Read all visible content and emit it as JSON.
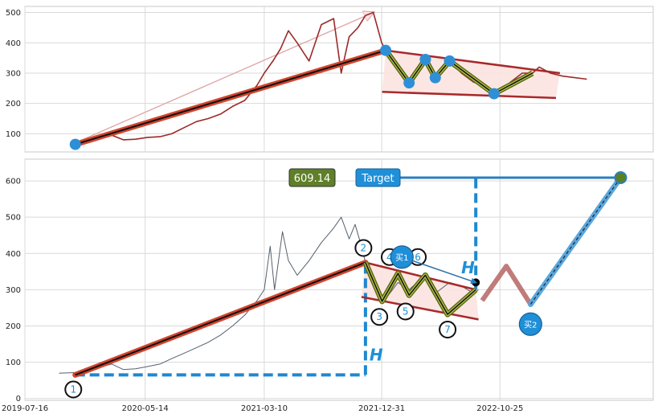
{
  "chart_data": [
    {
      "type": "line",
      "panel": "overview",
      "ylim": [
        40,
        520
      ],
      "y_ticks": [
        "100",
        "200",
        "300",
        "400",
        "500"
      ],
      "x_range": [
        "2019-07-16",
        "2023-11-15"
      ],
      "grid": true,
      "price_series": [
        [
          "2019-11-20",
          65
        ],
        [
          "2019-12-20",
          75
        ],
        [
          "2020-01-20",
          88
        ],
        [
          "2020-02-20",
          95
        ],
        [
          "2020-03-20",
          80
        ],
        [
          "2020-04-20",
          82
        ],
        [
          "2020-05-20",
          88
        ],
        [
          "2020-06-20",
          90
        ],
        [
          "2020-07-20",
          100
        ],
        [
          "2020-08-20",
          120
        ],
        [
          "2020-09-20",
          140
        ],
        [
          "2020-10-20",
          150
        ],
        [
          "2020-11-20",
          165
        ],
        [
          "2020-12-20",
          190
        ],
        [
          "2021-01-20",
          210
        ],
        [
          "2021-02-20",
          260
        ],
        [
          "2021-03-10",
          300
        ],
        [
          "2021-04-01",
          340
        ],
        [
          "2021-04-20",
          380
        ],
        [
          "2021-05-10",
          440
        ],
        [
          "2021-06-01",
          400
        ],
        [
          "2021-07-01",
          340
        ],
        [
          "2021-08-01",
          460
        ],
        [
          "2021-09-01",
          480
        ],
        [
          "2021-09-20",
          300
        ],
        [
          "2021-10-10",
          420
        ],
        [
          "2021-11-01",
          450
        ],
        [
          "2021-11-20",
          490
        ],
        [
          "2021-12-10",
          500
        ],
        [
          "2021-12-31",
          400
        ],
        [
          "2022-01-10",
          375
        ],
        [
          "2022-02-10",
          330
        ],
        [
          "2022-03-10",
          270
        ],
        [
          "2022-04-01",
          300
        ],
        [
          "2022-04-20",
          345
        ],
        [
          "2022-05-15",
          285
        ],
        [
          "2022-06-10",
          320
        ],
        [
          "2022-06-20",
          340
        ],
        [
          "2022-07-20",
          300
        ],
        [
          "2022-08-20",
          270
        ],
        [
          "2022-09-20",
          260
        ],
        [
          "2022-10-10",
          232
        ],
        [
          "2022-10-25",
          240
        ],
        [
          "2022-11-20",
          270
        ],
        [
          "2022-12-20",
          300
        ],
        [
          "2023-01-15",
          300
        ],
        [
          "2023-02-01",
          320
        ],
        [
          "2023-03-01",
          300
        ],
        [
          "2023-04-01",
          290
        ],
        [
          "2023-05-01",
          285
        ],
        [
          "2023-06-01",
          280
        ]
      ],
      "trend_line": [
        [
          "2019-11-20",
          65
        ],
        [
          "2022-01-10",
          375
        ]
      ],
      "upper_arrow": [
        [
          "2019-11-20",
          70
        ],
        [
          "2021-12-10",
          500
        ]
      ],
      "channel_upper": [
        [
          "2022-01-10",
          375
        ],
        [
          "2023-03-25",
          300
        ]
      ],
      "channel_lower": [
        [
          "2022-01-01",
          238
        ],
        [
          "2023-03-15",
          218
        ]
      ],
      "zigzag": [
        [
          "2022-01-10",
          375
        ],
        [
          "2022-03-10",
          268
        ],
        [
          "2022-04-20",
          345
        ],
        [
          "2022-05-15",
          285
        ],
        [
          "2022-06-20",
          340
        ],
        [
          "2022-10-10",
          232
        ],
        [
          "2023-01-15",
          300
        ]
      ],
      "pivot_points": [
        [
          "2019-11-20",
          65
        ],
        [
          "2022-01-10",
          375
        ],
        [
          "2022-03-10",
          268
        ],
        [
          "2022-04-20",
          345
        ],
        [
          "2022-05-15",
          285
        ],
        [
          "2022-06-20",
          340
        ],
        [
          "2022-10-10",
          232
        ]
      ]
    },
    {
      "type": "line",
      "panel": "pattern",
      "ylim": [
        -5,
        660
      ],
      "y_ticks": [
        "0",
        "100",
        "200",
        "300",
        "400",
        "500",
        "600"
      ],
      "x_ticks": [
        "2019-07-16",
        "2020-05-14",
        "2021-03-10",
        "2021-12-31",
        "2022-10-25"
      ],
      "x_range": [
        "2019-07-16",
        "2023-11-15"
      ],
      "grid": true,
      "price_series": [
        [
          "2019-10-10",
          70
        ],
        [
          "2019-12-01",
          72
        ],
        [
          "2020-01-15",
          85
        ],
        [
          "2020-02-20",
          95
        ],
        [
          "2020-03-20",
          80
        ],
        [
          "2020-04-20",
          82
        ],
        [
          "2020-05-20",
          88
        ],
        [
          "2020-06-20",
          95
        ],
        [
          "2020-07-20",
          110
        ],
        [
          "2020-08-20",
          125
        ],
        [
          "2020-09-20",
          140
        ],
        [
          "2020-10-20",
          155
        ],
        [
          "2020-11-20",
          175
        ],
        [
          "2020-12-20",
          200
        ],
        [
          "2021-01-20",
          230
        ],
        [
          "2021-02-20",
          270
        ],
        [
          "2021-03-10",
          300
        ],
        [
          "2021-03-25",
          420
        ],
        [
          "2021-04-05",
          300
        ],
        [
          "2021-04-25",
          460
        ],
        [
          "2021-05-10",
          380
        ],
        [
          "2021-06-01",
          340
        ],
        [
          "2021-07-01",
          380
        ],
        [
          "2021-08-01",
          430
        ],
        [
          "2021-09-01",
          470
        ],
        [
          "2021-09-20",
          500
        ],
        [
          "2021-10-10",
          440
        ],
        [
          "2021-10-25",
          480
        ],
        [
          "2021-11-10",
          420
        ],
        [
          "2021-11-20",
          375
        ],
        [
          "2021-12-01",
          330
        ],
        [
          "2021-12-20",
          300
        ],
        [
          "2022-01-10",
          275
        ],
        [
          "2022-02-10",
          320
        ],
        [
          "2022-03-10",
          300
        ],
        [
          "2022-04-20",
          340
        ],
        [
          "2022-05-15",
          290
        ],
        [
          "2022-06-20",
          320
        ],
        [
          "2022-07-20",
          310
        ],
        [
          "2022-08-20",
          290
        ],
        [
          "2022-09-01",
          300
        ]
      ],
      "trend_line": [
        [
          "2019-11-20",
          65
        ],
        [
          "2021-11-20",
          375
        ]
      ],
      "baseline_dash": [
        [
          "2019-11-20",
          65
        ],
        [
          "2021-11-20",
          65
        ]
      ],
      "h_vertical_1": [
        [
          "2021-11-20",
          65
        ],
        [
          "2021-11-20",
          375
        ]
      ],
      "channel_upper": [
        [
          "2021-11-20",
          375
        ],
        [
          "2022-08-25",
          300
        ]
      ],
      "channel_lower": [
        [
          "2021-11-10",
          280
        ],
        [
          "2022-09-01",
          218
        ]
      ],
      "zigzag": [
        [
          "2021-11-20",
          375
        ],
        [
          "2022-01-01",
          268
        ],
        [
          "2022-02-10",
          345
        ],
        [
          "2022-03-10",
          285
        ],
        [
          "2022-04-20",
          340
        ],
        [
          "2022-06-15",
          232
        ],
        [
          "2022-08-25",
          300
        ]
      ],
      "h_vertical_2": [
        [
          "2022-08-25",
          300
        ],
        [
          "2022-08-25",
          609
        ]
      ],
      "target_line": [
        [
          "2021-12-31",
          609
        ],
        [
          "2023-08-25",
          609
        ]
      ],
      "projection": [
        [
          "2022-09-10",
          270
        ],
        [
          "2022-11-10",
          365
        ],
        [
          "2023-01-10",
          260
        ],
        [
          "2023-08-25",
          609
        ]
      ],
      "labels": {
        "value_badge": "609.14",
        "target_badge": "Target",
        "h_label": "H",
        "buy1": "买1",
        "buy2": "买2",
        "markers": [
          "1",
          "2",
          "3",
          "4",
          "5",
          "6",
          "7"
        ]
      },
      "markers_at": [
        [
          "2019-11-15",
          25
        ],
        [
          "2021-11-15",
          415
        ],
        [
          "2021-12-25",
          225
        ],
        [
          "2022-01-20",
          390
        ],
        [
          "2022-03-01",
          240
        ],
        [
          "2022-04-01",
          390
        ],
        [
          "2022-06-15",
          190
        ]
      ],
      "buy1_at": [
        "2022-02-20",
        390
      ],
      "buy2_at": [
        "2023-01-10",
        205
      ],
      "end_dot": [
        "2022-08-25",
        320
      ]
    }
  ]
}
